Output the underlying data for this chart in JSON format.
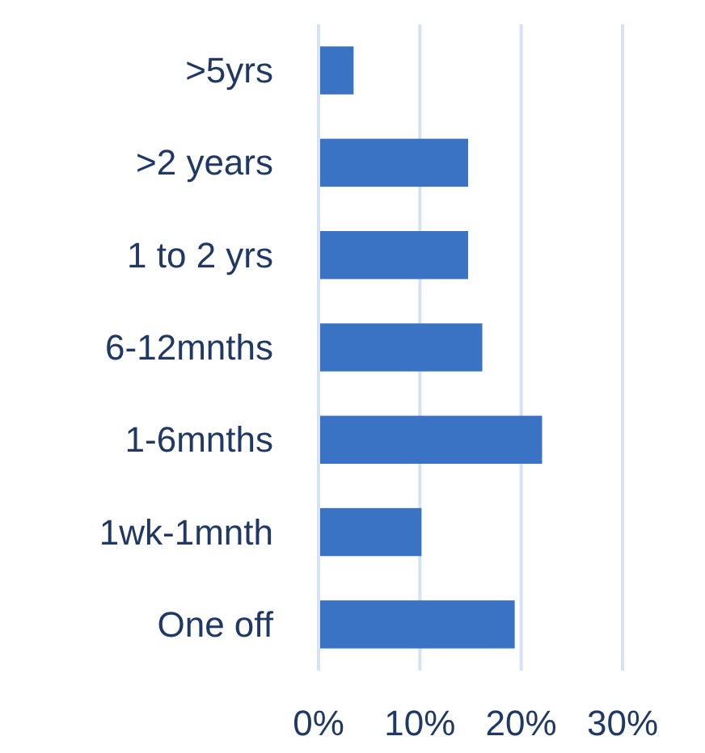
{
  "chart_data": {
    "type": "bar",
    "orientation": "horizontal",
    "categories": [
      ">5yrs",
      ">2 years",
      "1 to 2 yrs",
      "6-12mnths",
      "1-6mnths",
      "1wk-1mnth",
      "One off"
    ],
    "values": [
      3.3,
      14.6,
      14.6,
      16,
      21.9,
      10,
      19.2
    ],
    "color": "#3a73c3",
    "xlim": [
      0,
      30
    ],
    "xticks": [
      {
        "value": 0,
        "label": "0%"
      },
      {
        "value": 10,
        "label": "10%"
      },
      {
        "value": 20,
        "label": "20%"
      },
      {
        "value": 30,
        "label": "30%"
      }
    ],
    "grid": "x"
  }
}
